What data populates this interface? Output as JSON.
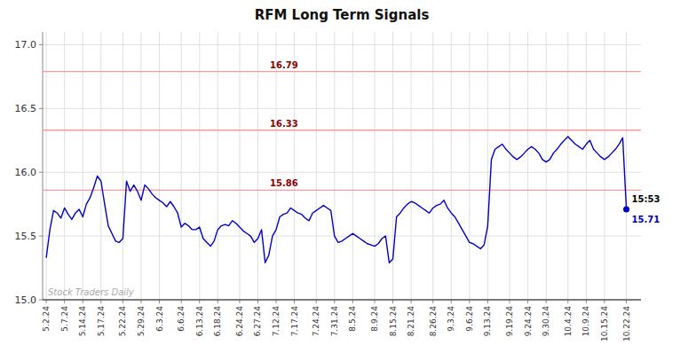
{
  "chart_data": {
    "type": "line",
    "title": "RFM Long Term Signals",
    "watermark": "Stock Traders Daily",
    "color": "#0000cc",
    "grid": true,
    "ylim": [
      15.0,
      17.1
    ],
    "yticks": [
      {
        "value": 15.0,
        "label": "15.0"
      },
      15.5,
      {
        "value": 16.0,
        "label": "16.0"
      },
      16.5,
      {
        "value": 17.0,
        "label": "17.0"
      }
    ],
    "reference_lines": [
      {
        "value": 16.79,
        "label": "16.79",
        "color": "#ff9999"
      },
      {
        "value": 16.33,
        "label": "16.33",
        "color": "#ff9999"
      },
      {
        "value": 15.86,
        "label": "15.86",
        "color": "#ff9999"
      }
    ],
    "annotations": [
      "15:53",
      "15.71"
    ],
    "categories": [
      "5.2.24",
      null,
      null,
      null,
      null,
      "5.7.24",
      null,
      null,
      null,
      null,
      "5.14.24",
      null,
      null,
      null,
      null,
      "5.17.24",
      null,
      null,
      null,
      null,
      null,
      "5.22.24",
      null,
      null,
      null,
      null,
      "5.29.24",
      null,
      null,
      null,
      null,
      "6.3.24",
      null,
      null,
      null,
      null,
      null,
      "6.6.24",
      null,
      null,
      null,
      null,
      "6.13.24",
      null,
      null,
      null,
      null,
      "6.18.24",
      null,
      null,
      null,
      null,
      null,
      "6.24.24",
      null,
      null,
      null,
      null,
      "6.27.24",
      null,
      null,
      null,
      null,
      "7.12.24",
      null,
      null,
      null,
      null,
      "7.17.24",
      null,
      null,
      null,
      null,
      null,
      "7.24.24",
      null,
      null,
      null,
      null,
      "7.31.24",
      null,
      null,
      null,
      null,
      "8.5.24",
      null,
      null,
      null,
      null,
      null,
      "8.9.24",
      null,
      null,
      null,
      null,
      "8.15.24",
      null,
      null,
      null,
      null,
      "8.21.24",
      null,
      null,
      null,
      null,
      null,
      "8.26.24",
      null,
      null,
      null,
      null,
      "9.3.24",
      null,
      null,
      null,
      null,
      "9.6.24",
      null,
      null,
      null,
      null,
      "9.13.24",
      null,
      null,
      null,
      null,
      null,
      "9.19.24",
      null,
      null,
      null,
      null,
      "9.24.24",
      null,
      null,
      null,
      null,
      "9.30.24",
      null,
      null,
      null,
      null,
      null,
      "10.4.24",
      null,
      null,
      null,
      null,
      "10.9.24",
      null,
      null,
      null,
      null,
      "10.15.24",
      null,
      null,
      null,
      null,
      null,
      "10.22.24"
    ],
    "values": [
      15.33,
      15.55,
      15.7,
      15.68,
      15.64,
      15.72,
      15.67,
      15.63,
      15.68,
      15.71,
      15.65,
      15.75,
      15.8,
      15.88,
      15.97,
      15.93,
      15.75,
      15.58,
      15.52,
      15.46,
      15.45,
      15.48,
      15.93,
      15.85,
      15.9,
      15.85,
      15.78,
      15.9,
      15.87,
      15.83,
      15.8,
      15.78,
      15.76,
      15.73,
      15.77,
      15.73,
      15.68,
      15.57,
      15.6,
      15.58,
      15.55,
      15.55,
      15.57,
      15.48,
      15.45,
      15.42,
      15.46,
      15.55,
      15.58,
      15.59,
      15.58,
      15.62,
      15.6,
      15.57,
      15.54,
      15.52,
      15.5,
      15.45,
      15.48,
      15.55,
      15.29,
      15.35,
      15.5,
      15.55,
      15.65,
      15.67,
      15.68,
      15.72,
      15.7,
      15.68,
      15.67,
      15.64,
      15.62,
      15.68,
      15.7,
      15.72,
      15.74,
      15.72,
      15.7,
      15.5,
      15.45,
      15.46,
      15.48,
      15.5,
      15.52,
      15.5,
      15.48,
      15.46,
      15.44,
      15.43,
      15.42,
      15.44,
      15.48,
      15.5,
      15.29,
      15.32,
      15.65,
      15.68,
      15.72,
      15.75,
      15.77,
      15.76,
      15.74,
      15.72,
      15.7,
      15.68,
      15.72,
      15.74,
      15.75,
      15.78,
      15.72,
      15.68,
      15.65,
      15.6,
      15.55,
      15.5,
      15.45,
      15.44,
      15.42,
      15.4,
      15.43,
      15.58,
      16.1,
      16.18,
      16.2,
      16.22,
      16.18,
      16.15,
      16.12,
      16.1,
      16.12,
      16.15,
      16.18,
      16.2,
      16.18,
      16.15,
      16.1,
      16.08,
      16.1,
      16.15,
      16.18,
      16.22,
      16.25,
      16.28,
      16.25,
      16.22,
      16.2,
      16.18,
      16.22,
      16.25,
      16.18,
      16.15,
      16.12,
      16.1,
      16.12,
      16.15,
      16.18,
      16.22,
      16.27,
      15.71
    ]
  }
}
